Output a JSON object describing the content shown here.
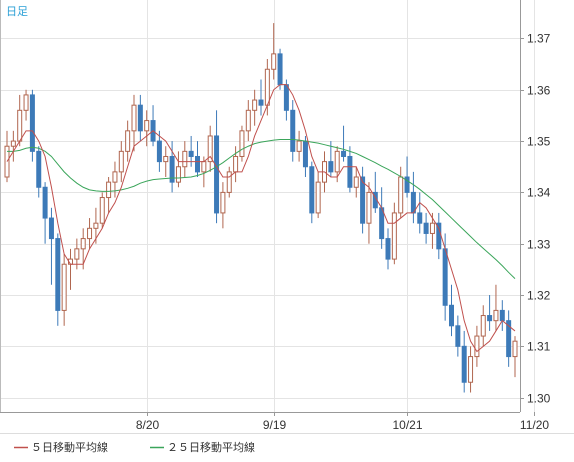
{
  "chart_data": {
    "type": "candlestick",
    "corner_label": "日足",
    "x_ticks": [
      "8/20",
      "9/19",
      "10/21",
      "11/20"
    ],
    "y_ticks": [
      1.3,
      1.31,
      1.32,
      1.33,
      1.34,
      1.35,
      1.36,
      1.37
    ],
    "ylim": [
      1.2972,
      1.3775
    ],
    "grid": true,
    "legend": {
      "placement": "bottom-left",
      "entries": [
        {
          "name": "５日移動平均線",
          "color": "#c0504d"
        },
        {
          "name": "２５日移動平均線",
          "color": "#3aa55a"
        }
      ]
    },
    "colors": {
      "up": "#c9a08e",
      "down": "#3d7ab8",
      "ma5": "#c0504d",
      "ma25": "#3aa55a",
      "grid": "#e4e4e4"
    },
    "candles": [
      [
        1.343,
        1.352,
        1.342,
        1.349
      ],
      [
        1.349,
        1.352,
        1.346,
        1.35
      ],
      [
        1.35,
        1.359,
        1.349,
        1.356
      ],
      [
        1.356,
        1.36,
        1.354,
        1.359
      ],
      [
        1.359,
        1.36,
        1.346,
        1.348
      ],
      [
        1.348,
        1.349,
        1.339,
        1.341
      ],
      [
        1.341,
        1.342,
        1.33,
        1.335
      ],
      [
        1.335,
        1.337,
        1.322,
        1.331
      ],
      [
        1.331,
        1.332,
        1.314,
        1.317
      ],
      [
        1.317,
        1.328,
        1.314,
        1.326
      ],
      [
        1.326,
        1.329,
        1.321,
        1.327
      ],
      [
        1.327,
        1.331,
        1.325,
        1.329
      ],
      [
        1.329,
        1.333,
        1.325,
        1.331
      ],
      [
        1.331,
        1.335,
        1.329,
        1.333
      ],
      [
        1.333,
        1.337,
        1.33,
        1.334
      ],
      [
        1.334,
        1.34,
        1.333,
        1.339
      ],
      [
        1.339,
        1.343,
        1.336,
        1.342
      ],
      [
        1.342,
        1.346,
        1.339,
        1.344
      ],
      [
        1.344,
        1.35,
        1.342,
        1.348
      ],
      [
        1.348,
        1.354,
        1.346,
        1.352
      ],
      [
        1.352,
        1.359,
        1.348,
        1.357
      ],
      [
        1.357,
        1.359,
        1.35,
        1.352
      ],
      [
        1.352,
        1.356,
        1.349,
        1.354
      ],
      [
        1.354,
        1.357,
        1.349,
        1.35
      ],
      [
        1.35,
        1.352,
        1.344,
        1.346
      ],
      [
        1.346,
        1.349,
        1.343,
        1.347
      ],
      [
        1.347,
        1.35,
        1.34,
        1.342
      ],
      [
        1.342,
        1.348,
        1.341,
        1.345
      ],
      [
        1.345,
        1.35,
        1.343,
        1.348
      ],
      [
        1.348,
        1.351,
        1.345,
        1.347
      ],
      [
        1.347,
        1.35,
        1.343,
        1.344
      ],
      [
        1.344,
        1.347,
        1.341,
        1.346
      ],
      [
        1.346,
        1.353,
        1.344,
        1.351
      ],
      [
        1.351,
        1.356,
        1.334,
        1.336
      ],
      [
        1.336,
        1.342,
        1.333,
        1.34
      ],
      [
        1.34,
        1.345,
        1.339,
        1.344
      ],
      [
        1.344,
        1.349,
        1.342,
        1.347
      ],
      [
        1.347,
        1.353,
        1.346,
        1.352
      ],
      [
        1.352,
        1.358,
        1.35,
        1.356
      ],
      [
        1.356,
        1.36,
        1.353,
        1.358
      ],
      [
        1.358,
        1.362,
        1.355,
        1.357
      ],
      [
        1.357,
        1.366,
        1.355,
        1.364
      ],
      [
        1.364,
        1.373,
        1.362,
        1.367
      ],
      [
        1.367,
        1.368,
        1.36,
        1.361
      ],
      [
        1.361,
        1.362,
        1.354,
        1.356
      ],
      [
        1.356,
        1.358,
        1.346,
        1.348
      ],
      [
        1.348,
        1.352,
        1.346,
        1.35
      ],
      [
        1.35,
        1.351,
        1.343,
        1.345
      ],
      [
        1.345,
        1.346,
        1.334,
        1.336
      ],
      [
        1.336,
        1.344,
        1.335,
        1.342
      ],
      [
        1.342,
        1.348,
        1.34,
        1.346
      ],
      [
        1.346,
        1.35,
        1.343,
        1.344
      ],
      [
        1.344,
        1.349,
        1.342,
        1.348
      ],
      [
        1.348,
        1.353,
        1.346,
        1.347
      ],
      [
        1.347,
        1.349,
        1.34,
        1.341
      ],
      [
        1.341,
        1.345,
        1.339,
        1.343
      ],
      [
        1.343,
        1.345,
        1.332,
        1.334
      ],
      [
        1.334,
        1.342,
        1.33,
        1.34
      ],
      [
        1.34,
        1.344,
        1.336,
        1.337
      ],
      [
        1.337,
        1.341,
        1.329,
        1.331
      ],
      [
        1.331,
        1.333,
        1.325,
        1.327
      ],
      [
        1.327,
        1.338,
        1.326,
        1.336
      ],
      [
        1.336,
        1.345,
        1.335,
        1.343
      ],
      [
        1.343,
        1.347,
        1.339,
        1.34
      ],
      [
        1.34,
        1.344,
        1.334,
        1.336
      ],
      [
        1.336,
        1.34,
        1.332,
        1.334
      ],
      [
        1.334,
        1.336,
        1.33,
        1.332
      ],
      [
        1.332,
        1.336,
        1.329,
        1.334
      ],
      [
        1.334,
        1.336,
        1.327,
        1.329
      ],
      [
        1.329,
        1.332,
        1.315,
        1.318
      ],
      [
        1.318,
        1.322,
        1.312,
        1.314
      ],
      [
        1.314,
        1.316,
        1.308,
        1.31
      ],
      [
        1.31,
        1.313,
        1.301,
        1.303
      ],
      [
        1.303,
        1.31,
        1.301,
        1.308
      ],
      [
        1.308,
        1.314,
        1.306,
        1.312
      ],
      [
        1.312,
        1.318,
        1.31,
        1.316
      ],
      [
        1.316,
        1.32,
        1.313,
        1.315
      ],
      [
        1.315,
        1.322,
        1.313,
        1.317
      ],
      [
        1.317,
        1.319,
        1.313,
        1.315
      ],
      [
        1.315,
        1.317,
        1.306,
        1.308
      ],
      [
        1.308,
        1.312,
        1.304,
        1.311
      ]
    ],
    "ma5": [
      1.346,
      1.348,
      1.35,
      1.352,
      1.352,
      1.35,
      1.347,
      1.341,
      1.334,
      1.328,
      1.326,
      1.326,
      1.326,
      1.329,
      1.331,
      1.333,
      1.336,
      1.338,
      1.341,
      1.345,
      1.349,
      1.35,
      1.351,
      1.352,
      1.351,
      1.35,
      1.348,
      1.346,
      1.346,
      1.346,
      1.346,
      1.346,
      1.347,
      1.345,
      1.343,
      1.343,
      1.344,
      1.344,
      1.347,
      1.351,
      1.354,
      1.357,
      1.36,
      1.361,
      1.361,
      1.359,
      1.356,
      1.352,
      1.347,
      1.344,
      1.344,
      1.343,
      1.343,
      1.345,
      1.345,
      1.345,
      1.342,
      1.341,
      1.339,
      1.337,
      1.334,
      1.334,
      1.335,
      1.336,
      1.336,
      1.338,
      1.337,
      1.335,
      1.333,
      1.329,
      1.325,
      1.321,
      1.315,
      1.311,
      1.309,
      1.31,
      1.311,
      1.313,
      1.315,
      1.314,
      1.313
    ],
    "ma25": [
      1.348,
      1.348,
      1.3482,
      1.3486,
      1.3488,
      1.3486,
      1.348,
      1.347,
      1.3455,
      1.344,
      1.3428,
      1.3418,
      1.341,
      1.3405,
      1.3403,
      1.3402,
      1.3402,
      1.3403,
      1.3405,
      1.3408,
      1.3412,
      1.3418,
      1.3422,
      1.3425,
      1.3426,
      1.3427,
      1.3428,
      1.3428,
      1.3429,
      1.343,
      1.3433,
      1.3437,
      1.3443,
      1.345,
      1.3458,
      1.3467,
      1.3476,
      1.3484,
      1.349,
      1.3495,
      1.3498,
      1.35,
      1.3502,
      1.3503,
      1.3503,
      1.3503,
      1.3502,
      1.35,
      1.3498,
      1.3496,
      1.3493,
      1.349,
      1.3487,
      1.3484,
      1.348,
      1.3476,
      1.347,
      1.3464,
      1.3458,
      1.3451,
      1.3445,
      1.3438,
      1.3431,
      1.3423,
      1.3415,
      1.3406,
      1.3396,
      1.3386,
      1.3374,
      1.3362,
      1.335,
      1.3338,
      1.3326,
      1.3314,
      1.3302,
      1.3291,
      1.328,
      1.3269,
      1.3257,
      1.3244,
      1.3232
    ],
    "x_tick_candle_index": [
      22,
      42,
      63,
      83
    ]
  }
}
